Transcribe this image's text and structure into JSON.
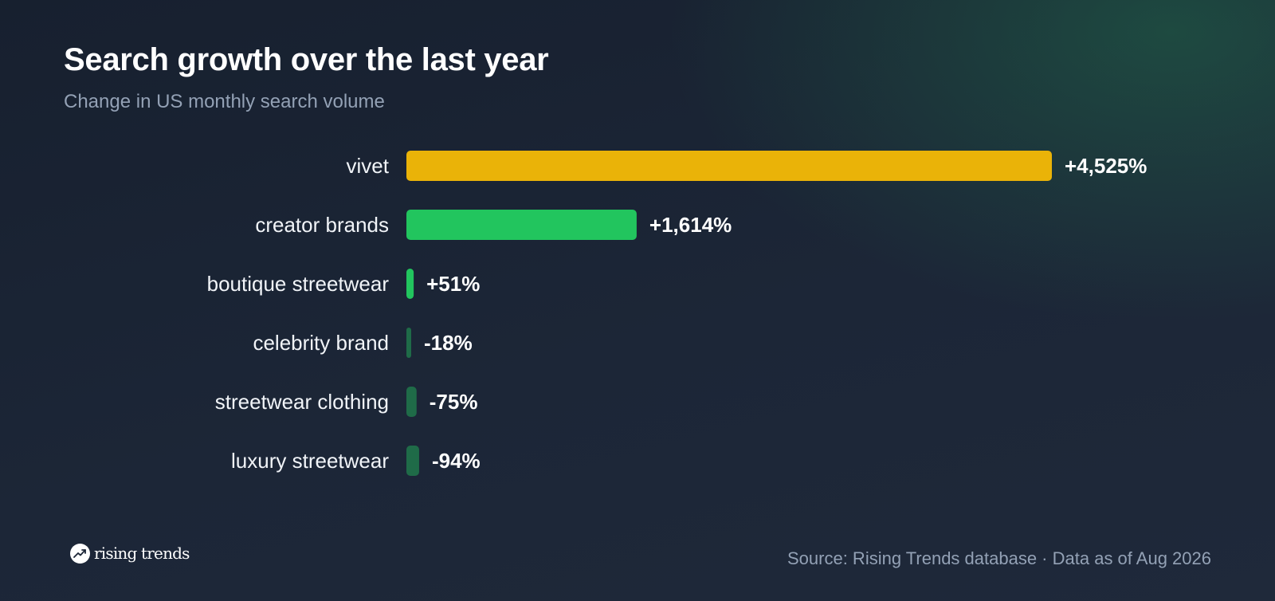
{
  "colors": {
    "highlight": "#eab308",
    "strong_positive": "#22c55e",
    "negative": "#1f6b48"
  },
  "logo": {
    "icon": "trending-up-icon",
    "text": "rising trends"
  },
  "footer": {
    "source": "Source: Rising Trends database · Data as of Aug 2026"
  },
  "chart_data": {
    "type": "bar",
    "orientation": "horizontal",
    "title": "Search growth over the last year",
    "subtitle": "Change in US monthly search volume",
    "categories": [
      "vivet",
      "creator brands",
      "boutique streetwear",
      "celebrity brand",
      "streetwear clothing",
      "luxury streetwear"
    ],
    "values": [
      4525,
      1614,
      51,
      -18,
      -75,
      -94
    ],
    "value_labels": [
      "+4,525%",
      "+1,614%",
      "+51%",
      "-18%",
      "-75%",
      "-94%"
    ],
    "unit": "%",
    "bar_colors": [
      "#eab308",
      "#22c55e",
      "#22c55e",
      "#1f6b48",
      "#1f6b48",
      "#1f6b48"
    ],
    "grid": false,
    "legend": "none"
  }
}
